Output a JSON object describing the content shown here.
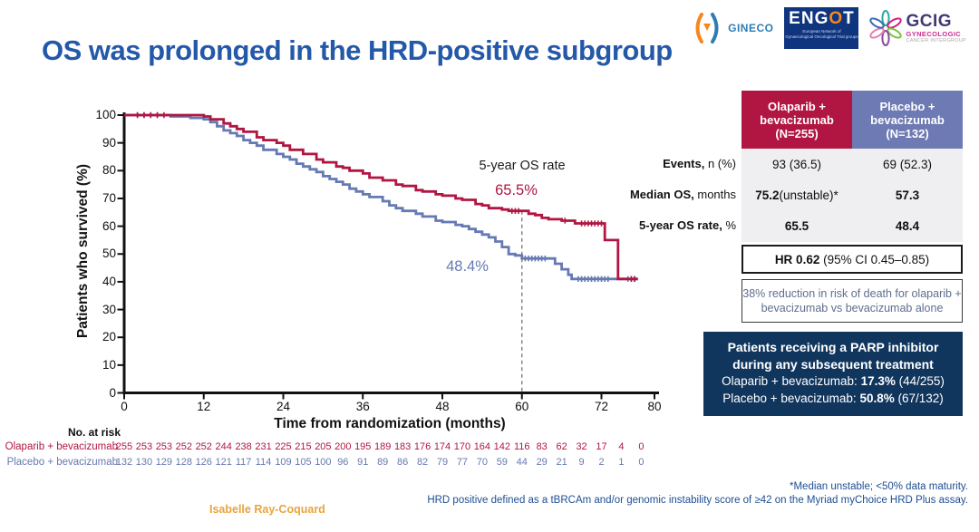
{
  "theme": {
    "title": "#2458a8",
    "navy": "#11365e",
    "red": "#b11642",
    "blue": "#6679b2",
    "footnote": "#1e4e94",
    "author": "#e9a43c"
  },
  "header": {
    "title": "OS was prolonged in the HRD-positive subgroup",
    "logos": {
      "gineco": {
        "name": "GINECO"
      },
      "engot": {
        "name_pre": "ENG",
        "name_o": "O",
        "name_post": "T",
        "sub": "European Network of\nGynaecological Oncological Trial groups"
      },
      "gcig": {
        "name": "GCIG",
        "sub1": "GYNECOLOGIC",
        "sub2": "CANCER INTERGROUP"
      }
    }
  },
  "chart_data": {
    "type": "line",
    "subtype": "kaplan-meier",
    "xlabel": "Time from randomization (months)",
    "ylabel": "Patients who survived (%)",
    "xlim": [
      0,
      80
    ],
    "ylim": [
      0,
      100
    ],
    "x_ticks": [
      0,
      12,
      24,
      36,
      48,
      60,
      72,
      80
    ],
    "y_ticks": [
      0,
      10,
      20,
      30,
      40,
      50,
      60,
      70,
      80,
      90,
      100
    ],
    "grid": false,
    "legend_position": "none",
    "annotation": {
      "label": "5-year OS rate",
      "x": 60,
      "dash_top": 65.5,
      "olaparib_rate": "65.5%",
      "placebo_rate": "48.4%"
    },
    "series": [
      {
        "name": "Olaparib + bevacizumab",
        "color": "#b11642",
        "points": [
          [
            0,
            100
          ],
          [
            7,
            100
          ],
          [
            12,
            99.5
          ],
          [
            13,
            98.5
          ],
          [
            15,
            97
          ],
          [
            16,
            96
          ],
          [
            17,
            95
          ],
          [
            18,
            94
          ],
          [
            20,
            92
          ],
          [
            21,
            91
          ],
          [
            23,
            90
          ],
          [
            24,
            89
          ],
          [
            25,
            87.5
          ],
          [
            27,
            86
          ],
          [
            29,
            84
          ],
          [
            30,
            83
          ],
          [
            32,
            81.5
          ],
          [
            33,
            81
          ],
          [
            34,
            80
          ],
          [
            36,
            79
          ],
          [
            37,
            77.5
          ],
          [
            39,
            76.5
          ],
          [
            41,
            75
          ],
          [
            42,
            74.5
          ],
          [
            44,
            73
          ],
          [
            45,
            72.5
          ],
          [
            47,
            71.5
          ],
          [
            48,
            71
          ],
          [
            50,
            70
          ],
          [
            51,
            69.5
          ],
          [
            53,
            68
          ],
          [
            54,
            67.5
          ],
          [
            55,
            66.5
          ],
          [
            57,
            66
          ],
          [
            58,
            65.5
          ],
          [
            61,
            64.5
          ],
          [
            62,
            64
          ],
          [
            63,
            63
          ],
          [
            64,
            62.5
          ],
          [
            66,
            62
          ],
          [
            68,
            61
          ],
          [
            72.5,
            55
          ],
          [
            74.5,
            41
          ],
          [
            77.5,
            41
          ]
        ],
        "censors": [
          2,
          3,
          4,
          5,
          6,
          58.5,
          59,
          59.5,
          66.5,
          69,
          69.5,
          70,
          70.5,
          71,
          71.5,
          72,
          76.5,
          77
        ]
      },
      {
        "name": "Placebo + bevacizumab",
        "color": "#6679b2",
        "points": [
          [
            0,
            100
          ],
          [
            6,
            100
          ],
          [
            7,
            99.5
          ],
          [
            10,
            99
          ],
          [
            12,
            98.5
          ],
          [
            13,
            97.5
          ],
          [
            14,
            96
          ],
          [
            15,
            94.5
          ],
          [
            16,
            93.5
          ],
          [
            17,
            92.5
          ],
          [
            18,
            91
          ],
          [
            19,
            90
          ],
          [
            20,
            89
          ],
          [
            21,
            87.5
          ],
          [
            23,
            86
          ],
          [
            24,
            85
          ],
          [
            25,
            84
          ],
          [
            26,
            82.5
          ],
          [
            27,
            81.5
          ],
          [
            28,
            80.5
          ],
          [
            29,
            79.5
          ],
          [
            30,
            78
          ],
          [
            31,
            77
          ],
          [
            32,
            76
          ],
          [
            33,
            75
          ],
          [
            34,
            73.5
          ],
          [
            35,
            72.5
          ],
          [
            36,
            71.5
          ],
          [
            37,
            70.5
          ],
          [
            39,
            69
          ],
          [
            40,
            67.5
          ],
          [
            41,
            66.5
          ],
          [
            42,
            65.5
          ],
          [
            44,
            64.5
          ],
          [
            45,
            63.5
          ],
          [
            47,
            62
          ],
          [
            48,
            61.5
          ],
          [
            50,
            60.5
          ],
          [
            51,
            60
          ],
          [
            52,
            59
          ],
          [
            53,
            58
          ],
          [
            54,
            57
          ],
          [
            55,
            56
          ],
          [
            56,
            54.5
          ],
          [
            57,
            52.5
          ],
          [
            58,
            50
          ],
          [
            59,
            49.5
          ],
          [
            60,
            48.4
          ],
          [
            64.5,
            48.4
          ],
          [
            65,
            46.5
          ],
          [
            66,
            44.5
          ],
          [
            67,
            42.5
          ],
          [
            67.5,
            41
          ],
          [
            77.5,
            41
          ]
        ],
        "censors": [
          2,
          3,
          4,
          5,
          60.5,
          61,
          61.5,
          62,
          62.5,
          63,
          63.5,
          68.5,
          69,
          69.5,
          70,
          70.5,
          71,
          71.5,
          72,
          72.5,
          73,
          76,
          76.5,
          77
        ]
      }
    ]
  },
  "risk_table": {
    "heading": "No. at risk",
    "times": [
      0,
      3,
      6,
      9,
      12,
      15,
      18,
      21,
      24,
      27,
      30,
      33,
      36,
      39,
      42,
      45,
      48,
      51,
      54,
      57,
      60,
      63,
      66,
      69,
      72,
      75,
      78
    ],
    "rows": [
      {
        "label": "Olaparib + bevacizumab",
        "color": "#b11642",
        "values": [
          255,
          253,
          253,
          252,
          252,
          244,
          238,
          231,
          225,
          215,
          205,
          200,
          195,
          189,
          183,
          176,
          174,
          170,
          164,
          142,
          116,
          83,
          62,
          32,
          17,
          4,
          0
        ]
      },
      {
        "label": "Placebo + bevacizumab",
        "color": "#6679b2",
        "values": [
          132,
          130,
          129,
          128,
          126,
          121,
          117,
          114,
          109,
          105,
          100,
          96,
          91,
          89,
          86,
          82,
          79,
          77,
          70,
          59,
          44,
          29,
          21,
          9,
          2,
          1,
          0
        ]
      }
    ]
  },
  "summary_table": {
    "columns": [
      {
        "title": "Olaparib +\nbevacizumab\n(N=255)",
        "bg": "#b11642"
      },
      {
        "title": "Placebo +\nbevacizumab\n(N=132)",
        "bg": "#6d7ab3"
      }
    ],
    "rows": [
      {
        "label_bold": "Events,",
        "label_rest": " n (%)",
        "cells": [
          {
            "bold": "",
            "rest": "93 (36.5)"
          },
          {
            "bold": "",
            "rest": "69 (52.3)"
          }
        ]
      },
      {
        "label_bold": "Median OS,",
        "label_rest": " months",
        "cells": [
          {
            "bold": "75.2",
            "rest": " (unstable)*"
          },
          {
            "bold": "57.3",
            "rest": ""
          }
        ]
      },
      {
        "label_bold": "5-year OS rate,",
        "label_rest": " %",
        "cells": [
          {
            "bold": "65.5",
            "rest": ""
          },
          {
            "bold": "48.4",
            "rest": ""
          }
        ]
      }
    ]
  },
  "hr_box": {
    "bold": "HR 0.62",
    "rest": " (95% CI 0.45–0.85)"
  },
  "reduction_box": {
    "text": "38% reduction in risk of death for olaparib +\nbevacizumab vs bevacizumab alone"
  },
  "parp_box": {
    "title": "Patients receiving a PARP inhibitor\nduring any subsequent treatment",
    "rows": [
      {
        "prefix": "Olaparib + bevacizumab: ",
        "pct": "17.3%",
        "suffix": " (44/255)"
      },
      {
        "prefix": "Placebo + bevacizumab: ",
        "pct": "50.8%",
        "suffix": " (67/132)"
      }
    ]
  },
  "footnotes": {
    "line1": "*Median unstable; <50% data maturity.",
    "line2": "HRD positive defined as a tBRCAm and/or genomic instability score of ≥42 on the Myriad myChoice HRD Plus assay.",
    "author": "Isabelle Ray-Coquard"
  }
}
